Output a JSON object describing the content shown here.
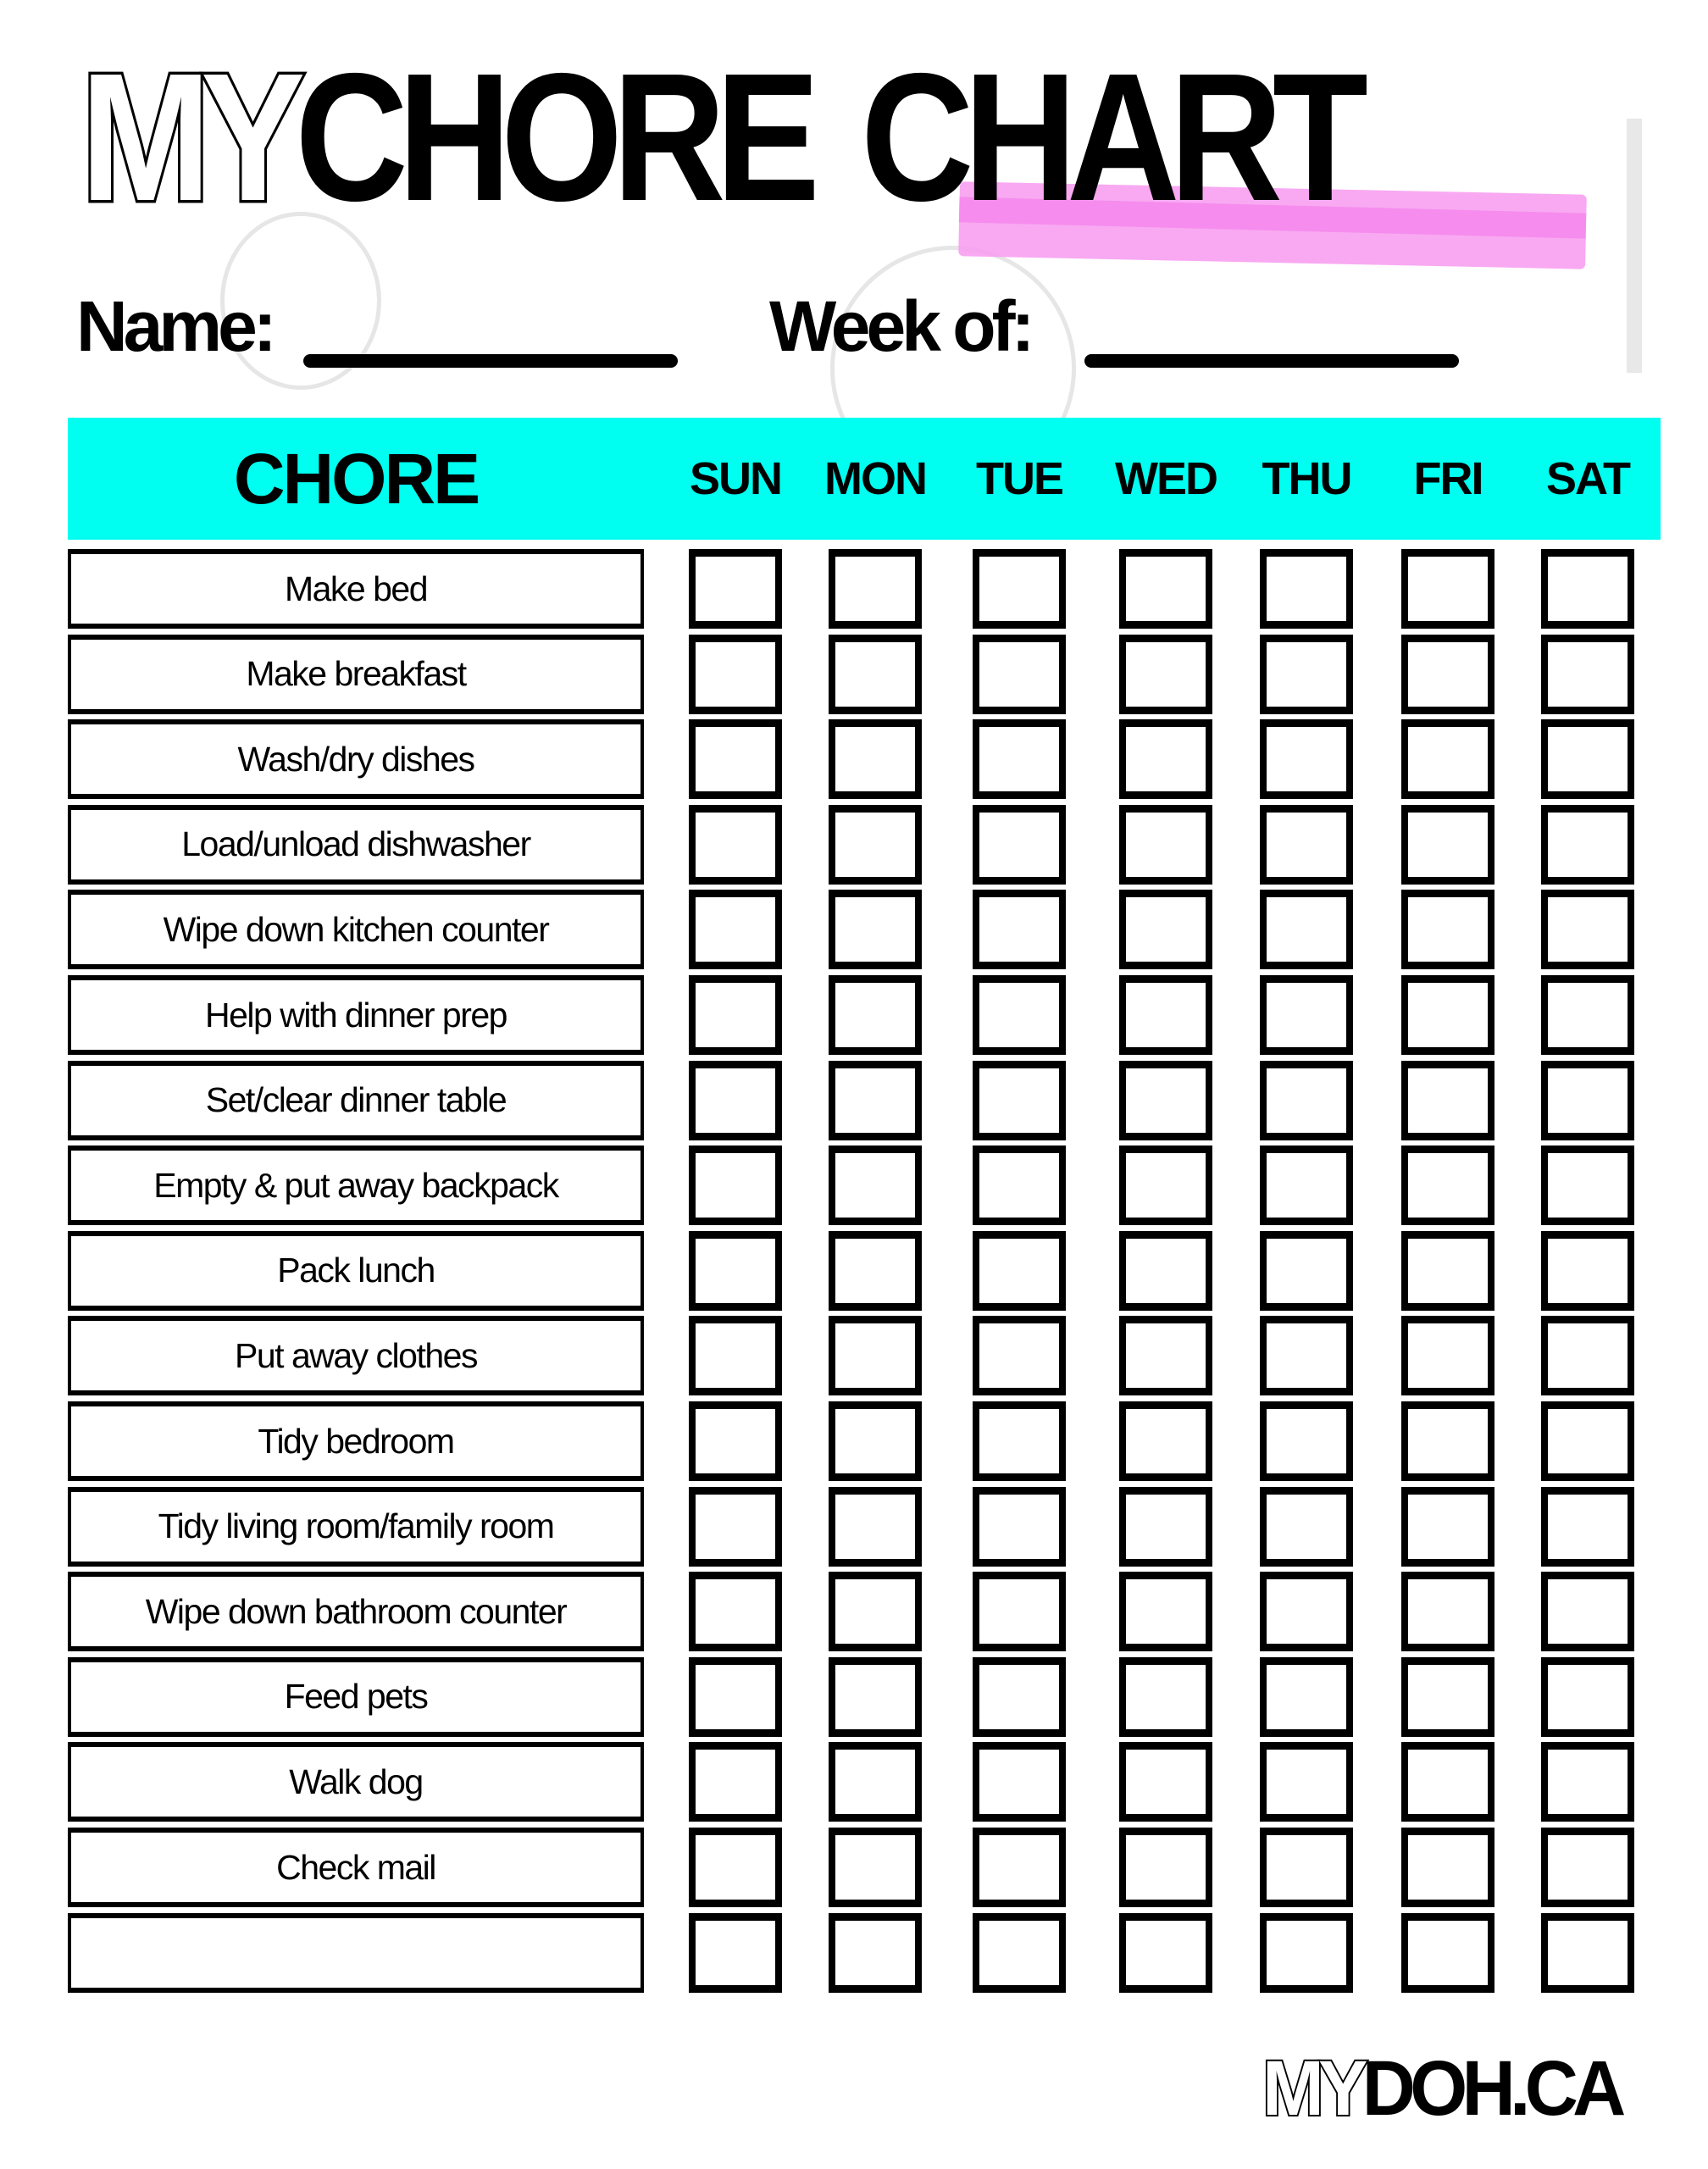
{
  "title": {
    "part_outline": "MY",
    "part_solid": "CHORE",
    "part_solid2": "CHART"
  },
  "fields": {
    "name_label": "Name:",
    "week_label": "Week of:"
  },
  "colors": {
    "header_band": "#00fff0",
    "highlighter": "#f79af0"
  },
  "table": {
    "chore_header": "CHORE",
    "days": [
      "SUN",
      "MON",
      "TUE",
      "WED",
      "THU",
      "FRI",
      "SAT"
    ],
    "chores": [
      "Make bed",
      "Make breakfast",
      "Wash/dry dishes",
      "Load/unload dishwasher",
      "Wipe down kitchen counter",
      "Help with dinner prep",
      "Set/clear dinner table",
      "Empty & put away backpack",
      "Pack lunch",
      "Put away clothes",
      "Tidy bedroom",
      "Tidy living room/family room",
      "Wipe down bathroom counter",
      "Feed pets",
      "Walk dog",
      "Check mail",
      ""
    ]
  },
  "logo": {
    "outline": "MY",
    "solid": "DOH.CA"
  }
}
